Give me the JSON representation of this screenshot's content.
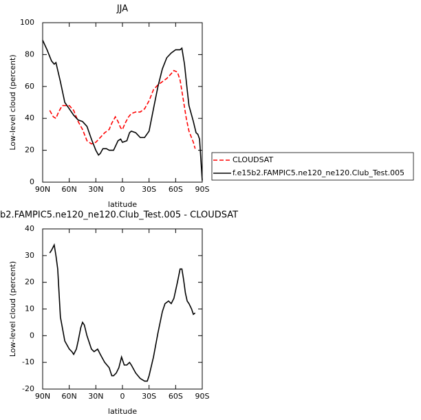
{
  "chart_data": [
    {
      "type": "line",
      "title": "JJA",
      "xlabel": "latitude",
      "ylabel": "Low-level cloud (percent)",
      "xlim": [
        90,
        -90
      ],
      "xticks": [
        {
          "value": 90,
          "label": "90N"
        },
        {
          "value": 60,
          "label": "60N"
        },
        {
          "value": 30,
          "label": "30N"
        },
        0,
        {
          "value": -30,
          "label": "30S"
        },
        {
          "value": -60,
          "label": "60S"
        },
        {
          "value": -90,
          "label": "90S"
        }
      ],
      "ylim": [
        0,
        100
      ],
      "yticks": [
        0,
        20,
        40,
        60,
        80,
        100
      ],
      "legend": "right",
      "series": [
        {
          "name": "CLOUDSAT",
          "color": "#ff0000",
          "dashed": true,
          "x": [
            82,
            78,
            75,
            72,
            68,
            65,
            60,
            55,
            50,
            45,
            40,
            35,
            30,
            25,
            20,
            15,
            12,
            8,
            5,
            2,
            0,
            -3,
            -7,
            -10,
            -15,
            -20,
            -25,
            -30,
            -35,
            -40,
            -45,
            -50,
            -55,
            -58,
            -62,
            -65,
            -68,
            -72,
            -75,
            -80,
            -82
          ],
          "values": [
            45,
            41,
            40,
            44,
            48,
            48,
            48,
            45,
            38,
            33,
            26,
            24,
            25,
            28,
            31,
            33,
            37,
            41,
            38,
            34,
            33,
            37,
            41,
            43,
            44,
            44,
            46,
            51,
            58,
            61,
            63,
            65,
            68,
            70,
            69,
            64,
            54,
            40,
            32,
            25,
            21
          ]
        },
        {
          "name": "f.e15b2.FAMPIC5.ne120_ne120.Club_Test.005",
          "color": "#000000",
          "dashed": false,
          "x": [
            90,
            85,
            80,
            77,
            75,
            70,
            65,
            60,
            55,
            50,
            45,
            40,
            35,
            30,
            27,
            25,
            22,
            18,
            15,
            10,
            5,
            2,
            0,
            -5,
            -8,
            -10,
            -15,
            -20,
            -25,
            -30,
            -35,
            -40,
            -45,
            -50,
            -55,
            -60,
            -65,
            -67,
            -70,
            -73,
            -75,
            -80,
            -83,
            -85,
            -87,
            -90
          ],
          "values": [
            89,
            83,
            76,
            74,
            75,
            63,
            50,
            46,
            42,
            39,
            38,
            35,
            27,
            20,
            17,
            18,
            21,
            21,
            20,
            20,
            26,
            27,
            25,
            26,
            31,
            32,
            31,
            28,
            28,
            32,
            46,
            60,
            71,
            78,
            81,
            83,
            83,
            84,
            74,
            58,
            48,
            38,
            31,
            30,
            27,
            1
          ]
        }
      ]
    },
    {
      "type": "line",
      "title": "b2.FAMPIC5.ne120_ne120.Club_Test.005  -  CLOUDSAT",
      "xlabel": "latitude",
      "ylabel": "Low-level cloud (percent)",
      "xlim": [
        90,
        -90
      ],
      "xticks": [
        {
          "value": 90,
          "label": "90N"
        },
        {
          "value": 60,
          "label": "60N"
        },
        {
          "value": 30,
          "label": "30N"
        },
        0,
        {
          "value": -30,
          "label": "30S"
        },
        {
          "value": -60,
          "label": "60S"
        },
        {
          "value": -90,
          "label": "90S"
        }
      ],
      "ylim": [
        -20,
        40
      ],
      "yticks": [
        -20,
        -10,
        0,
        10,
        20,
        30,
        40
      ],
      "series": [
        {
          "name": null,
          "color": "#000000",
          "dashed": false,
          "x": [
            82,
            80,
            77,
            75,
            73,
            70,
            65,
            60,
            57,
            55,
            52,
            50,
            47,
            45,
            43,
            40,
            37,
            35,
            32,
            28,
            25,
            20,
            15,
            12,
            10,
            7,
            4,
            1,
            0,
            -2,
            -5,
            -8,
            -10,
            -15,
            -20,
            -25,
            -28,
            -30,
            -35,
            -40,
            -45,
            -48,
            -52,
            -55,
            -58,
            -62,
            -65,
            -67,
            -69,
            -71,
            -73,
            -75,
            -78,
            -80,
            -82
          ],
          "values": [
            31,
            32,
            34,
            30,
            25,
            7,
            -2,
            -5,
            -6,
            -7,
            -5,
            -2,
            3,
            5,
            4,
            0,
            -3,
            -5,
            -6,
            -5,
            -7,
            -10,
            -12,
            -15,
            -15,
            -14,
            -12,
            -8,
            -9,
            -11,
            -11,
            -10,
            -11,
            -14,
            -16,
            -17,
            -17,
            -15,
            -8,
            1,
            9,
            12,
            13,
            12,
            14,
            20,
            25,
            25,
            21,
            16,
            13,
            12,
            10,
            8,
            8.5
          ]
        }
      ]
    }
  ]
}
